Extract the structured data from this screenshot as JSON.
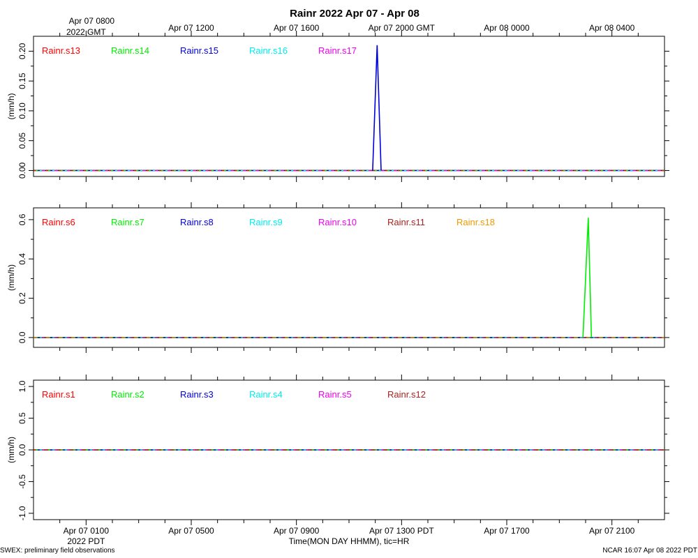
{
  "title": "Rainr 2022 Apr 07 - Apr 08",
  "footer": {
    "left": "SWEX: preliminary field observations",
    "right": "NCAR 16:07 Apr 08 2022 PDT"
  },
  "top_axis": {
    "timezone_label": "2022 GMT",
    "ticks": [
      "Apr 07 0800",
      "Apr 07 1200",
      "Apr 07 1600",
      "Apr 07 2000 GMT",
      "Apr 08 0000",
      "Apr 08 0400"
    ]
  },
  "bottom_axis": {
    "timezone_label": "2022 PDT",
    "xlabel": "Time(MON DAY HHMM), tic=HR",
    "ticks": [
      "Apr 07 0100",
      "Apr 07 0500",
      "Apr 07 0900",
      "Apr 07 1300 PDT",
      "Apr 07 1700",
      "Apr 07 2100"
    ]
  },
  "chart_data": [
    {
      "type": "line",
      "ylabel": "(mm/h)",
      "ylim": [
        -0.01,
        0.225
      ],
      "yticks": [
        "0.00",
        "0.05",
        "0.10",
        "0.15",
        "0.20"
      ],
      "series": [
        {
          "name": "Rainr.s13",
          "color": "#ff0000",
          "points": []
        },
        {
          "name": "Rainr.s14",
          "color": "#00ee00",
          "points": []
        },
        {
          "name": "Rainr.s15",
          "color": "#0000dd",
          "points": [
            [
              11.9,
              0.0
            ],
            [
              12.07,
              0.21
            ],
            [
              12.22,
              0.0
            ]
          ]
        },
        {
          "name": "Rainr.s16",
          "color": "#00eeee",
          "points": []
        },
        {
          "name": "Rainr.s17",
          "color": "#ee00ee",
          "points": []
        }
      ]
    },
    {
      "type": "line",
      "ylabel": "(mm/h)",
      "ylim": [
        -0.05,
        0.66
      ],
      "yticks": [
        "0.0",
        "0.2",
        "0.4",
        "0.6"
      ],
      "series": [
        {
          "name": "Rainr.s6",
          "color": "#ff0000",
          "points": []
        },
        {
          "name": "Rainr.s7",
          "color": "#00ee00",
          "points": [
            [
              19.9,
              0.0
            ],
            [
              20.1,
              0.61
            ],
            [
              20.22,
              0.0
            ]
          ]
        },
        {
          "name": "Rainr.s8",
          "color": "#0000dd",
          "points": []
        },
        {
          "name": "Rainr.s9",
          "color": "#00eeee",
          "points": []
        },
        {
          "name": "Rainr.s10",
          "color": "#ee00ee",
          "points": []
        },
        {
          "name": "Rainr.s11",
          "color": "#aa2222",
          "points": []
        },
        {
          "name": "Rainr.s18",
          "color": "#ee9900",
          "points": []
        }
      ]
    },
    {
      "type": "line",
      "ylabel": "(mm/h)",
      "ylim": [
        -1.1,
        1.1
      ],
      "yticks": [
        "-1.0",
        "-0.5",
        "0.0",
        "0.5",
        "1.0"
      ],
      "series": [
        {
          "name": "Rainr.s1",
          "color": "#ff0000",
          "points": []
        },
        {
          "name": "Rainr.s2",
          "color": "#00ee00",
          "points": []
        },
        {
          "name": "Rainr.s3",
          "color": "#0000dd",
          "points": []
        },
        {
          "name": "Rainr.s4",
          "color": "#00eeee",
          "points": []
        },
        {
          "name": "Rainr.s5",
          "color": "#ee00ee",
          "points": []
        },
        {
          "name": "Rainr.s12",
          "color": "#aa2222",
          "points": []
        }
      ]
    }
  ]
}
